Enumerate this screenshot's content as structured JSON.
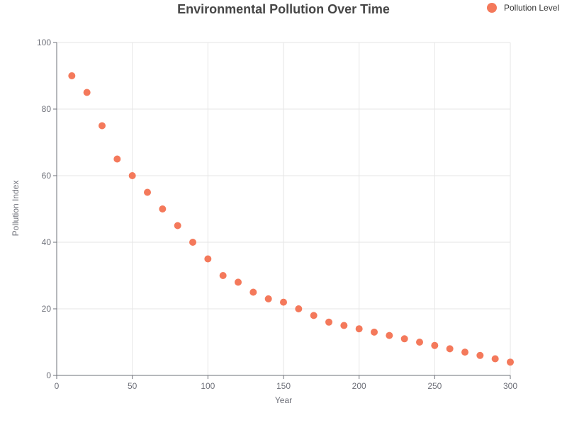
{
  "chart_data": {
    "type": "scatter",
    "title": "Environmental Pollution Over Time",
    "xlabel": "Year",
    "ylabel": "Pollution Index",
    "xlim": [
      0,
      300
    ],
    "ylim": [
      0,
      100
    ],
    "xticks": [
      0,
      50,
      100,
      150,
      200,
      250,
      300
    ],
    "yticks": [
      0,
      20,
      40,
      60,
      80,
      100
    ],
    "grid": true,
    "legend_position": "top-right",
    "series": [
      {
        "name": "Pollution Level",
        "color": "#f4795b",
        "points": [
          [
            10,
            90
          ],
          [
            20,
            85
          ],
          [
            30,
            75
          ],
          [
            40,
            65
          ],
          [
            50,
            60
          ],
          [
            60,
            55
          ],
          [
            70,
            50
          ],
          [
            80,
            45
          ],
          [
            90,
            40
          ],
          [
            100,
            35
          ],
          [
            110,
            30
          ],
          [
            120,
            28
          ],
          [
            130,
            25
          ],
          [
            140,
            23
          ],
          [
            150,
            22
          ],
          [
            160,
            20
          ],
          [
            170,
            18
          ],
          [
            180,
            16
          ],
          [
            190,
            15
          ],
          [
            200,
            14
          ],
          [
            210,
            13
          ],
          [
            220,
            12
          ],
          [
            230,
            11
          ],
          [
            240,
            10
          ],
          [
            250,
            9
          ],
          [
            260,
            8
          ],
          [
            270,
            7
          ],
          [
            280,
            6
          ],
          [
            290,
            5
          ],
          [
            300,
            4
          ]
        ]
      }
    ]
  }
}
